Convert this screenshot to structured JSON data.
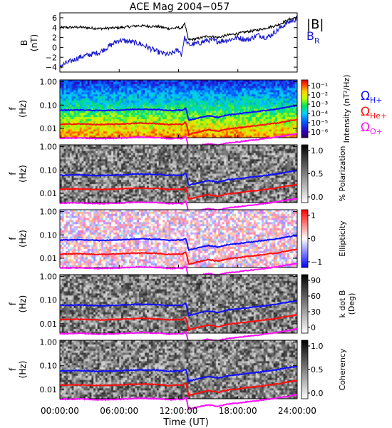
{
  "title": "ACE Mag 2004−057",
  "xlabel": "Time (UT)",
  "x_ticks": [
    "00:00:00",
    "06:00:00",
    "12:00:00",
    "18:00:00",
    "24:00:00"
  ],
  "legend_top": {
    "absB": "|B|",
    "br": "B",
    "br_sub": "R"
  },
  "legend_cyclotron": [
    {
      "sym": "Ω",
      "sub": "H+",
      "color": "#1010ff"
    },
    {
      "sym": "Ω",
      "sub": "He+",
      "color": "#ff1010"
    },
    {
      "sym": "Ω",
      "sub": "O+",
      "color": "#ff10ff"
    }
  ],
  "colors": {
    "absB": "#000000",
    "br": "#1a1acc",
    "h": "#1010ff",
    "he": "#ff1010",
    "o": "#ff10ff"
  },
  "chart_data": [
    {
      "type": "line",
      "panel": "field",
      "ylabel": "B",
      "yunit": "(nT)",
      "ylim": [
        -5,
        7
      ],
      "y_ticks": [
        "6",
        "4",
        "2",
        "0",
        "−2",
        "−4"
      ],
      "y_tick_values": [
        6,
        4,
        2,
        0,
        -2,
        -4
      ],
      "x": [
        0,
        2,
        4,
        6,
        8,
        10,
        11,
        12,
        12.3,
        12.6,
        13,
        14,
        15,
        16,
        17,
        18,
        19,
        20,
        21,
        22,
        23,
        24
      ],
      "series": [
        {
          "name": "|B|",
          "values": [
            4.0,
            4.1,
            3.8,
            4.0,
            4.4,
            4.2,
            3.8,
            4.0,
            3.8,
            5.0,
            1.5,
            1.8,
            2.3,
            2.0,
            2.5,
            2.8,
            3.2,
            3.5,
            4.0,
            4.5,
            5.5,
            6.2
          ]
        },
        {
          "name": "B_R",
          "values": [
            -3.8,
            -2.0,
            -1.0,
            1.5,
            0.8,
            -1.0,
            -1.5,
            -0.5,
            -1.5,
            2.0,
            0.5,
            0.8,
            1.5,
            1.2,
            1.5,
            2.0,
            1.5,
            2.5,
            2.0,
            3.5,
            5.0,
            5.8
          ]
        }
      ]
    },
    {
      "type": "heatmap",
      "panel": "intensity",
      "ylabel": "f",
      "yunit": "(Hz)",
      "y_ticks": [
        "1.00",
        "0.10",
        "0.01"
      ],
      "y_tick_values": [
        1.0,
        0.1,
        0.01
      ],
      "ylim": [
        0.004,
        1.2
      ],
      "cbar_label": "Intensity (nT²/Hz)",
      "cbar_ticks": [
        "10⁻¹",
        "10⁻²",
        "10⁻³",
        "10⁻⁴",
        "10⁻⁵",
        "10⁻⁶"
      ],
      "cbar_range": [
        "10⁻⁶",
        "10⁻¹"
      ]
    },
    {
      "type": "heatmap",
      "panel": "polarization",
      "ylabel": "f",
      "yunit": "(Hz)",
      "y_ticks": [
        "1.00",
        "0.10",
        "0.01"
      ],
      "y_tick_values": [
        1.0,
        0.1,
        0.01
      ],
      "cbar_label": "% Polarization",
      "cbar_ticks": [
        "1.0",
        "0.5",
        "0.0"
      ],
      "cbar_range": [
        0,
        1
      ]
    },
    {
      "type": "heatmap",
      "panel": "ellipticity",
      "ylabel": "f",
      "yunit": "(Hz)",
      "y_ticks": [
        "1.00",
        "0.10",
        "0.01"
      ],
      "y_tick_values": [
        1.0,
        0.1,
        0.01
      ],
      "cbar_label": "Ellipticity",
      "cbar_ticks": [
        "1",
        "0",
        "−1"
      ],
      "cbar_range": [
        -1,
        1
      ]
    },
    {
      "type": "heatmap",
      "panel": "kdotb",
      "ylabel": "f",
      "yunit": "(Hz)",
      "y_ticks": [
        "1.00",
        "0.10",
        "0.01"
      ],
      "y_tick_values": [
        1.0,
        0.1,
        0.01
      ],
      "cbar_label": "k dot B",
      "cbar_unit": "(Deg)",
      "cbar_ticks": [
        "90",
        "60",
        "30",
        "0"
      ],
      "cbar_range": [
        0,
        90
      ]
    },
    {
      "type": "heatmap",
      "panel": "coherency",
      "ylabel": "f",
      "yunit": "(Hz)",
      "y_ticks": [
        "1.00",
        "0.10",
        "0.01"
      ],
      "y_tick_values": [
        1.0,
        0.1,
        0.01
      ],
      "cbar_label": "Coherency",
      "cbar_ticks": [
        "1.0",
        "0.5",
        "0.0"
      ],
      "cbar_range": [
        0,
        1
      ]
    }
  ],
  "cyclotron_lines": {
    "x": [
      0,
      2,
      4,
      6,
      8,
      10,
      11,
      12,
      12.4,
      12.7,
      13,
      14,
      15,
      16,
      17,
      18,
      19,
      20,
      21,
      22,
      23,
      24
    ],
    "H_plus_hz": [
      0.06,
      0.062,
      0.058,
      0.061,
      0.067,
      0.064,
      0.058,
      0.061,
      0.058,
      0.075,
      0.022,
      0.028,
      0.035,
      0.03,
      0.038,
      0.042,
      0.048,
      0.053,
      0.06,
      0.068,
      0.082,
      0.095
    ],
    "He_plus_hz": [
      0.015,
      0.0155,
      0.0145,
      0.0153,
      0.0168,
      0.016,
      0.0145,
      0.0153,
      0.0145,
      0.019,
      0.0055,
      0.007,
      0.0088,
      0.0075,
      0.0095,
      0.0105,
      0.012,
      0.0133,
      0.015,
      0.017,
      0.0205,
      0.024
    ],
    "O_plus_hz": [
      0.0038,
      0.0039,
      0.0036,
      0.0038,
      0.0042,
      0.004,
      0.0036,
      0.0038,
      0.0036,
      0.0047,
      0.0014,
      0.0018,
      0.0022,
      0.0019,
      0.0024,
      0.0026,
      0.003,
      0.0033,
      0.0038,
      0.0043,
      0.0051,
      0.006
    ]
  }
}
